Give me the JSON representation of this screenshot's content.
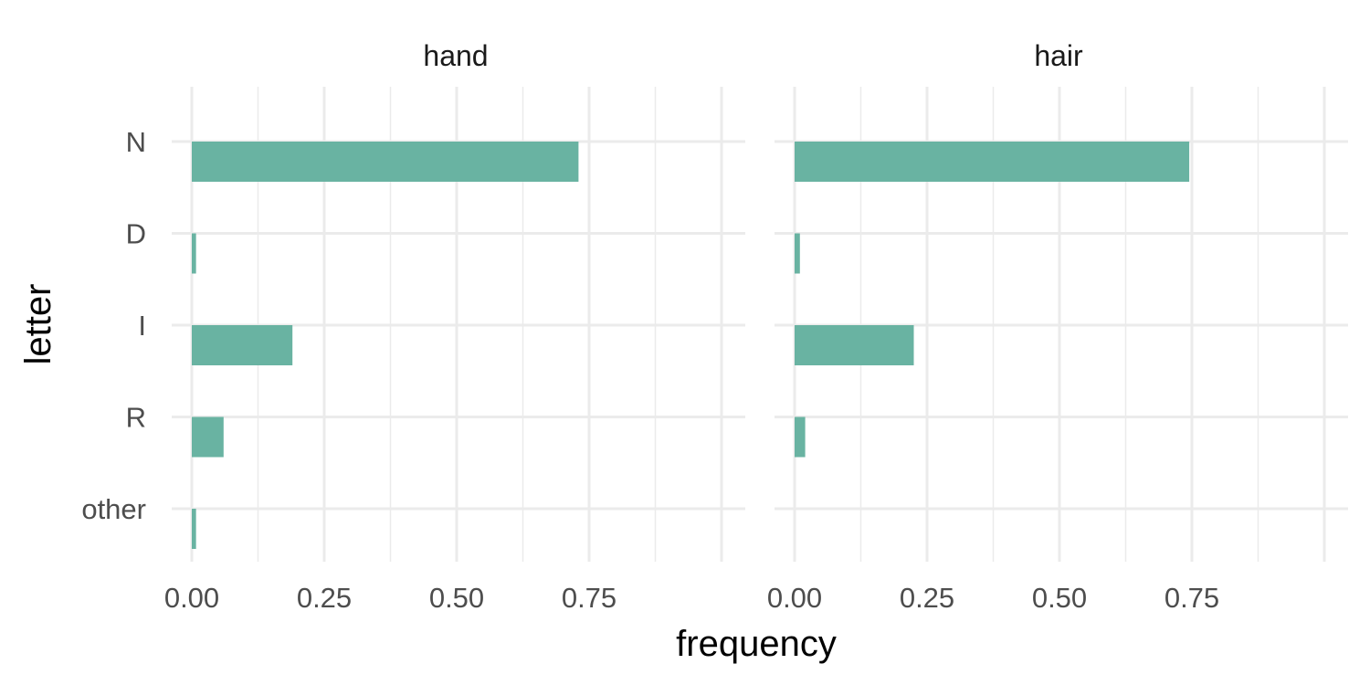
{
  "chart_data": {
    "type": "bar",
    "orientation": "horizontal",
    "faceted": true,
    "categories": [
      "N",
      "D",
      "I",
      "R",
      "other"
    ],
    "xlabel": "frequency",
    "ylabel": "letter",
    "xlim": [
      0,
      1.0
    ],
    "xticks": [
      0.0,
      0.25,
      0.5,
      0.75
    ],
    "xtick_labels": [
      "0.00",
      "0.25",
      "0.50",
      "0.75"
    ],
    "grid": true,
    "bar_color": "#69b3a2",
    "panels": [
      {
        "facet": "hand",
        "values": [
          0.73,
          0.008,
          0.19,
          0.06,
          0.008
        ]
      },
      {
        "facet": "hair",
        "values": [
          0.745,
          0.01,
          0.225,
          0.02,
          0.0
        ]
      }
    ]
  }
}
